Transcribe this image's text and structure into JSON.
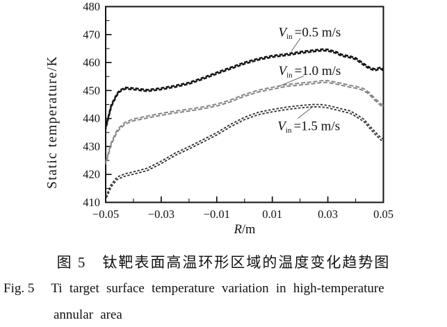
{
  "figure": {
    "caption_zh": "图 5　钛靶表面高温环形区域的温度变化趋势图",
    "caption_fig_label": "Fig. 5",
    "caption_en_line1": "Ti target surface temperature variation in high-temperature",
    "caption_en_line2": "annular area"
  },
  "chart_data": {
    "type": "line",
    "title": "",
    "ylabel": "Static temperature/K",
    "xlabel_var": "R",
    "xlabel_rest": "/m",
    "xlim": [
      -0.05,
      0.05
    ],
    "ylim": [
      410,
      480
    ],
    "grid": false,
    "legend_position": "inline-annotations",
    "x_major_ticks": [
      -0.05,
      -0.03,
      -0.01,
      0.01,
      0.03,
      0.05
    ],
    "x_major_tick_labels": [
      "−0.05",
      "−0.03",
      "−0.01",
      "0.01",
      "0.03",
      "0.05"
    ],
    "x_minor_ticks": [
      -0.04,
      -0.02,
      0.0,
      0.02,
      0.04
    ],
    "y_major_ticks": [
      410,
      420,
      430,
      440,
      450,
      460,
      470,
      480
    ],
    "y_major_tick_labels": [
      "410",
      "420",
      "430",
      "440",
      "450",
      "460",
      "470",
      "480"
    ],
    "y_minor_ticks": [
      415,
      425,
      435,
      445,
      455,
      465,
      475
    ],
    "x": [
      -0.05,
      -0.048,
      -0.046,
      -0.045,
      -0.043,
      -0.04,
      -0.035,
      -0.03,
      -0.025,
      -0.02,
      -0.015,
      -0.01,
      -0.005,
      0.0,
      0.005,
      0.01,
      0.015,
      0.02,
      0.025,
      0.028,
      0.03,
      0.033,
      0.035,
      0.038,
      0.04,
      0.043,
      0.045,
      0.047,
      0.049,
      0.05
    ],
    "series": [
      {
        "name": "Vin=0.5 m/s",
        "label_var": "V",
        "label_sub": "in",
        "label_rest": "=0.5 m/s",
        "color": "#141414",
        "values": [
          436.5,
          444.5,
          448.5,
          449.8,
          450.8,
          450.6,
          450.0,
          450.6,
          451.5,
          452.6,
          454.3,
          456.2,
          458.0,
          459.8,
          461.2,
          462.2,
          462.8,
          463.6,
          464.2,
          464.5,
          464.4,
          463.6,
          462.6,
          462.0,
          461.4,
          459.3,
          458.0,
          457.4,
          458.0,
          457.4
        ]
      },
      {
        "name": "Vin=1.0 m/s",
        "label_var": "V",
        "label_sub": "in",
        "label_rest": "=1.0 m/s",
        "color": "#858585",
        "values": [
          424.0,
          431.0,
          435.3,
          436.5,
          438.3,
          439.5,
          440.5,
          441.5,
          442.3,
          443.0,
          443.8,
          444.8,
          446.3,
          448.3,
          449.8,
          450.8,
          451.8,
          452.3,
          452.8,
          453.2,
          453.2,
          452.6,
          452.2,
          451.5,
          451.2,
          450.3,
          448.8,
          446.8,
          445.0,
          444.3
        ]
      },
      {
        "name": "Vin=1.5 m/s",
        "label_var": "V",
        "label_sub": "in",
        "label_rest": "=1.5 m/s",
        "color": "#2e2e2e",
        "values": [
          411.5,
          416.0,
          418.5,
          419.0,
          419.8,
          420.5,
          421.8,
          424.3,
          427.2,
          429.5,
          432.0,
          434.5,
          437.5,
          440.0,
          441.8,
          442.8,
          443.6,
          444.2,
          444.6,
          444.5,
          444.2,
          443.5,
          443.0,
          442.3,
          441.2,
          439.3,
          437.0,
          434.8,
          432.8,
          432.2
        ]
      }
    ],
    "annotations": [
      {
        "series": 0,
        "x": 0.0122,
        "t": 469.3,
        "leader": [
          [
            0.0201,
            468.7
          ],
          [
            0.0168,
            463.9
          ]
        ]
      },
      {
        "series": 1,
        "x": 0.0122,
        "t": 455.6,
        "leader": [
          [
            0.0213,
            455.2
          ],
          [
            0.0131,
            451.8
          ]
        ]
      },
      {
        "series": 2,
        "x": 0.0119,
        "t": 435.8,
        "leader": [
          [
            0.0192,
            440.0
          ],
          [
            0.0247,
            444.3
          ]
        ]
      }
    ]
  }
}
